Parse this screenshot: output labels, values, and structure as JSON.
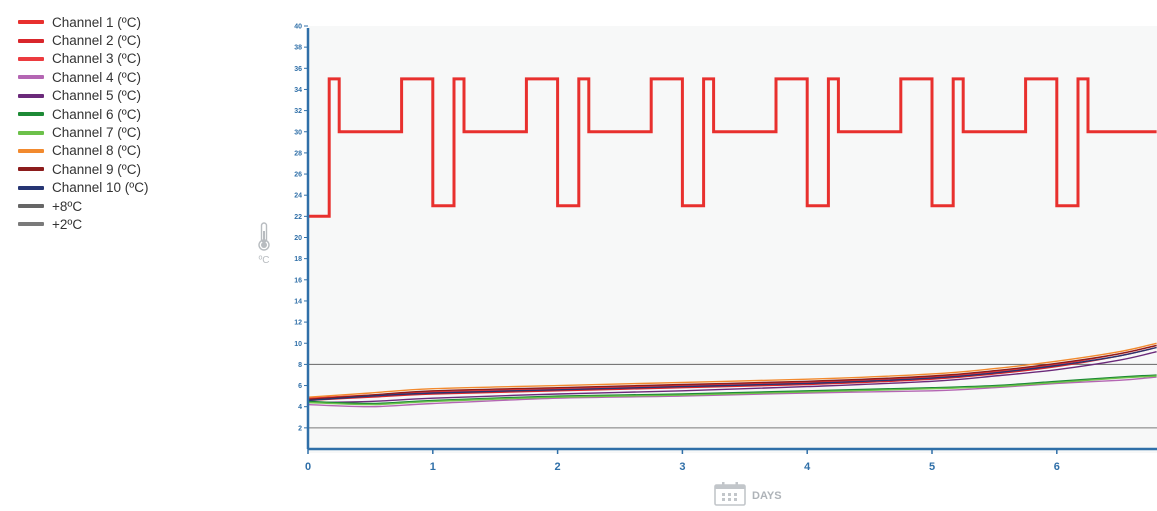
{
  "legend": {
    "items": [
      {
        "label": "Channel 1 (ºC)",
        "color": "#e8302e"
      },
      {
        "label": "Channel 2 (ºC)",
        "color": "#d9262b"
      },
      {
        "label": "Channel 3 (ºC)",
        "color": "#ec3b3f"
      },
      {
        "label": "Channel 4 (ºC)",
        "color": "#b466b3"
      },
      {
        "label": "Channel 5 (ºC)",
        "color": "#6b2a7a"
      },
      {
        "label": "Channel 6 (ºC)",
        "color": "#1d8a36"
      },
      {
        "label": "Channel 7 (ºC)",
        "color": "#6cc14a"
      },
      {
        "label": "Channel 8 (ºC)",
        "color": "#f28a2e"
      },
      {
        "label": "Channel 9 (ºC)",
        "color": "#8c1c1c"
      },
      {
        "label": "Channel 10 (ºC)",
        "color": "#263573"
      },
      {
        "label": "+8ºC",
        "color": "#666666"
      },
      {
        "label": "+2ºC",
        "color": "#7a7a7a"
      }
    ]
  },
  "axis": {
    "y_unit": "ºC",
    "x_unit": "DAYS",
    "y_icon": "thermometer-icon",
    "x_icon": "calendar-icon"
  },
  "chart_data": {
    "type": "line",
    "xlabel": "DAYS",
    "ylabel": "ºC",
    "xlim": [
      0,
      6.8
    ],
    "ylim": [
      0,
      40
    ],
    "x_ticks": [
      0,
      1,
      2,
      3,
      4,
      5,
      6
    ],
    "y_ticks": [
      2,
      4,
      6,
      8,
      10,
      12,
      14,
      16,
      18,
      20,
      22,
      24,
      26,
      28,
      30,
      32,
      34,
      36,
      38,
      40
    ],
    "grid": false,
    "legend_position": "top-left",
    "reference_lines": [
      {
        "name": "+8ºC",
        "y": 8,
        "color": "#666666"
      },
      {
        "name": "+2ºC",
        "y": 2,
        "color": "#7a7a7a"
      }
    ],
    "series": [
      {
        "name": "Channel 1 (ºC)",
        "color": "#e8302e",
        "step": true,
        "x": [
          0,
          0.17,
          0.17,
          0.25,
          0.25,
          0.75,
          0.75,
          1.0,
          1.0,
          1.17,
          1.17,
          1.25,
          1.25,
          1.75,
          1.75,
          2.0,
          2.0,
          2.17,
          2.17,
          2.25,
          2.25,
          2.75,
          2.75,
          3.0,
          3.0,
          3.17,
          3.17,
          3.25,
          3.25,
          3.75,
          3.75,
          4.0,
          4.0,
          4.17,
          4.17,
          4.25,
          4.25,
          4.75,
          4.75,
          5.0,
          5.0,
          5.17,
          5.17,
          5.25,
          5.25,
          5.75,
          5.75,
          6.0,
          6.0,
          6.17,
          6.17,
          6.25,
          6.25,
          6.8
        ],
        "y": [
          22,
          22,
          35,
          35,
          30,
          30,
          35,
          35,
          23,
          23,
          35,
          35,
          30,
          30,
          35,
          35,
          23,
          23,
          35,
          35,
          30,
          30,
          35,
          35,
          23,
          23,
          35,
          35,
          30,
          30,
          35,
          35,
          23,
          23,
          35,
          35,
          30,
          30,
          35,
          35,
          23,
          23,
          35,
          35,
          30,
          30,
          35,
          35,
          23,
          23,
          35,
          35,
          30,
          30
        ]
      },
      {
        "name": "Channel 2 (ºC)",
        "color": "#d9262b",
        "x": [
          0,
          0.5,
          1,
          2,
          3,
          4,
          5,
          5.5,
          6,
          6.5,
          6.8
        ],
        "y": [
          4.6,
          4.9,
          5.2,
          5.5,
          5.8,
          6.1,
          6.6,
          7.1,
          7.8,
          8.8,
          9.6
        ]
      },
      {
        "name": "Channel 3 (ºC)",
        "color": "#ec3b3f",
        "x": [
          0,
          0.5,
          1,
          2,
          3,
          4,
          5,
          5.5,
          6,
          6.5,
          6.8
        ],
        "y": [
          4.8,
          5.1,
          5.4,
          5.7,
          6.0,
          6.3,
          6.8,
          7.3,
          8.0,
          9.0,
          9.8
        ]
      },
      {
        "name": "Channel 4 (ºC)",
        "color": "#b466b3",
        "x": [
          0,
          0.5,
          1,
          2,
          3,
          4,
          5,
          5.5,
          6,
          6.5,
          6.8
        ],
        "y": [
          4.2,
          4.0,
          4.3,
          4.8,
          5.0,
          5.3,
          5.5,
          5.8,
          6.2,
          6.5,
          6.8
        ]
      },
      {
        "name": "Channel 5 (ºC)",
        "color": "#6b2a7a",
        "x": [
          0,
          0.5,
          1,
          2,
          3,
          4,
          5,
          5.5,
          6,
          6.5,
          6.8
        ],
        "y": [
          4.4,
          4.5,
          4.8,
          5.2,
          5.5,
          5.9,
          6.4,
          6.9,
          7.5,
          8.4,
          9.2
        ]
      },
      {
        "name": "Channel 6 (ºC)",
        "color": "#1d8a36",
        "x": [
          0,
          0.5,
          1,
          2,
          3,
          4,
          5,
          5.5,
          6,
          6.5,
          6.8
        ],
        "y": [
          4.5,
          4.3,
          4.6,
          5.0,
          5.2,
          5.5,
          5.8,
          6.0,
          6.4,
          6.8,
          7.0
        ]
      },
      {
        "name": "Channel 7 (ºC)",
        "color": "#6cc14a",
        "x": [
          0,
          0.5,
          1,
          2,
          3,
          4,
          5,
          5.5,
          6,
          6.5,
          6.8
        ],
        "y": [
          4.4,
          4.2,
          4.5,
          4.9,
          5.1,
          5.4,
          5.7,
          5.9,
          6.3,
          6.7,
          6.9
        ]
      },
      {
        "name": "Channel 8 (ºC)",
        "color": "#f28a2e",
        "x": [
          0,
          0.5,
          1,
          2,
          3,
          4,
          5,
          5.5,
          6,
          6.5,
          6.8
        ],
        "y": [
          4.9,
          5.3,
          5.7,
          6.0,
          6.3,
          6.6,
          7.1,
          7.6,
          8.3,
          9.2,
          10.0
        ]
      },
      {
        "name": "Channel 9 (ºC)",
        "color": "#8c1c1c",
        "x": [
          0,
          0.5,
          1,
          2,
          3,
          4,
          5,
          5.5,
          6,
          6.5,
          6.8
        ],
        "y": [
          4.7,
          5.1,
          5.5,
          5.8,
          6.1,
          6.4,
          6.9,
          7.4,
          8.1,
          9.0,
          9.8
        ]
      },
      {
        "name": "Channel 10 (ºC)",
        "color": "#263573",
        "x": [
          0,
          0.5,
          1,
          2,
          3,
          4,
          5,
          5.5,
          6,
          6.5,
          6.8
        ],
        "y": [
          4.6,
          5.0,
          5.3,
          5.6,
          5.9,
          6.2,
          6.7,
          7.2,
          7.9,
          8.8,
          9.6
        ]
      }
    ]
  }
}
